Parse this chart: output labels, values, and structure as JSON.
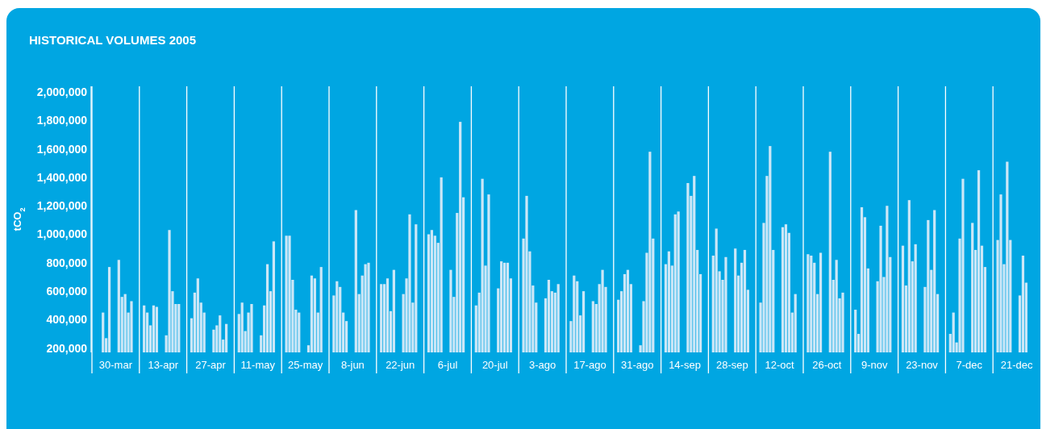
{
  "chart_data": {
    "type": "bar",
    "title": "HISTORICAL VOLUMES 2005",
    "ylabel": "tCO$_{2}$",
    "categories": [
      null,
      null,
      null,
      null,
      null,
      null,
      null,
      "30-mar",
      null,
      null,
      null,
      null,
      null,
      null,
      null,
      null,
      null,
      null,
      null,
      null,
      null,
      null,
      "13-apr",
      null,
      null,
      null,
      null,
      null,
      null,
      null,
      null,
      null,
      null,
      null,
      null,
      null,
      null,
      "27-apr",
      null,
      null,
      null,
      null,
      null,
      null,
      null,
      null,
      null,
      null,
      null,
      null,
      null,
      null,
      "11-may",
      null,
      null,
      null,
      null,
      null,
      null,
      null,
      null,
      null,
      null,
      null,
      null,
      null,
      null,
      "25-may",
      null,
      null,
      null,
      null,
      null,
      null,
      null,
      null,
      null,
      null,
      null,
      null,
      null,
      null,
      "8-jun",
      null,
      null,
      null,
      null,
      null,
      null,
      null,
      null,
      null,
      null,
      null,
      null,
      null,
      null,
      "22-jun",
      null,
      null,
      null,
      null,
      null,
      null,
      null,
      null,
      null,
      null,
      null,
      null,
      null,
      null,
      "6-jul",
      null,
      null,
      null,
      null,
      null,
      null,
      null,
      null,
      null,
      null,
      null,
      null,
      null,
      null,
      "20-jul",
      null,
      null,
      null,
      null,
      null,
      null,
      null,
      null,
      null,
      null,
      null,
      null,
      null,
      null,
      "3-ago",
      null,
      null,
      null,
      null,
      null,
      null,
      null,
      null,
      null,
      null,
      null,
      null,
      null,
      null,
      "17-ago",
      null,
      null,
      null,
      null,
      null,
      null,
      null,
      null,
      null,
      null,
      null,
      null,
      null,
      null,
      "31-ago",
      null,
      null,
      null,
      null,
      null,
      null,
      null,
      null,
      null,
      null,
      null,
      null,
      null,
      null,
      "14-sep",
      null,
      null,
      null,
      null,
      null,
      null,
      null,
      null,
      null,
      null,
      null,
      null,
      null,
      null,
      "28-sep",
      null,
      null,
      null,
      null,
      null,
      null,
      null,
      null,
      null,
      null,
      null,
      null,
      null,
      null,
      "12-oct",
      null,
      null,
      null,
      null,
      null,
      null,
      null,
      null,
      null,
      null,
      null,
      null,
      null,
      null,
      "26-oct",
      null,
      null,
      null,
      null,
      null,
      null,
      null,
      null,
      null,
      null,
      null,
      null,
      null,
      null,
      "9-nov",
      null,
      null,
      null,
      null,
      null,
      null,
      null,
      null,
      null,
      null,
      null,
      null,
      null,
      null,
      "23-nov",
      null,
      null,
      null,
      null,
      null,
      null,
      null,
      null,
      null,
      null,
      null,
      null,
      null,
      null,
      "7-dec",
      null,
      null,
      null,
      null,
      null,
      null,
      null,
      null,
      null,
      null,
      null,
      null,
      null,
      null,
      "21-dec",
      null,
      null,
      null,
      null,
      null,
      null,
      null
    ],
    "values": [
      null,
      null,
      null,
      450000,
      270000,
      770000,
      null,
      null,
      820000,
      560000,
      580000,
      450000,
      530000,
      null,
      null,
      null,
      500000,
      450000,
      360000,
      500000,
      490000,
      null,
      null,
      290000,
      1030000,
      600000,
      510000,
      510000,
      null,
      null,
      null,
      410000,
      590000,
      690000,
      520000,
      450000,
      null,
      null,
      330000,
      360000,
      430000,
      260000,
      370000,
      null,
      null,
      null,
      440000,
      520000,
      320000,
      450000,
      510000,
      null,
      null,
      290000,
      500000,
      790000,
      600000,
      950000,
      null,
      null,
      null,
      990000,
      990000,
      680000,
      470000,
      450000,
      null,
      null,
      220000,
      710000,
      690000,
      450000,
      770000,
      null,
      null,
      null,
      570000,
      670000,
      630000,
      450000,
      390000,
      null,
      null,
      1170000,
      580000,
      710000,
      790000,
      800000,
      null,
      null,
      null,
      650000,
      650000,
      690000,
      460000,
      750000,
      null,
      null,
      580000,
      690000,
      1140000,
      520000,
      1070000,
      null,
      null,
      null,
      1000000,
      1030000,
      990000,
      940000,
      1400000,
      null,
      null,
      750000,
      560000,
      1150000,
      1790000,
      1260000,
      null,
      null,
      null,
      500000,
      590000,
      1390000,
      780000,
      1280000,
      null,
      null,
      620000,
      810000,
      800000,
      800000,
      690000,
      null,
      null,
      null,
      970000,
      1270000,
      880000,
      640000,
      520000,
      null,
      null,
      550000,
      680000,
      600000,
      590000,
      650000,
      null,
      null,
      null,
      390000,
      710000,
      670000,
      430000,
      600000,
      null,
      null,
      530000,
      510000,
      650000,
      750000,
      630000,
      null,
      null,
      null,
      540000,
      600000,
      720000,
      750000,
      650000,
      null,
      null,
      220000,
      530000,
      870000,
      1580000,
      970000,
      null,
      null,
      null,
      790000,
      880000,
      780000,
      1140000,
      1160000,
      null,
      null,
      1360000,
      1270000,
      1410000,
      890000,
      720000,
      null,
      null,
      null,
      850000,
      1040000,
      740000,
      680000,
      840000,
      null,
      null,
      900000,
      710000,
      800000,
      890000,
      610000,
      null,
      null,
      null,
      520000,
      1080000,
      1410000,
      1620000,
      890000,
      null,
      null,
      1050000,
      1070000,
      1010000,
      450000,
      580000,
      null,
      null,
      null,
      860000,
      850000,
      800000,
      580000,
      870000,
      null,
      null,
      1580000,
      680000,
      820000,
      550000,
      590000,
      null,
      null,
      null,
      470000,
      300000,
      1190000,
      1120000,
      760000,
      null,
      null,
      670000,
      1060000,
      700000,
      1200000,
      840000,
      null,
      null,
      null,
      920000,
      640000,
      1240000,
      810000,
      930000,
      null,
      null,
      630000,
      1100000,
      750000,
      1170000,
      580000,
      null,
      null,
      null,
      300000,
      450000,
      240000,
      970000,
      1390000,
      null,
      null,
      1080000,
      890000,
      1450000,
      920000,
      770000,
      null,
      null,
      null,
      960000,
      1280000,
      790000,
      1510000,
      960000,
      null,
      null,
      570000,
      850000,
      660000,
      null,
      null,
      null,
      null
    ],
    "color": "#cce7f7",
    "ylim": [
      170000,
      2040000
    ],
    "yticks": [
      {
        "value": 200000,
        "label": "200,000"
      },
      {
        "value": 400000,
        "label": "400,000"
      },
      {
        "value": 600000,
        "label": "600,000"
      },
      {
        "value": 800000,
        "label": "800,000"
      },
      {
        "value": 1000000,
        "label": "1,000,000"
      },
      {
        "value": 1200000,
        "label": "1,200,000"
      },
      {
        "value": 1400000,
        "label": "1,400,000"
      },
      {
        "value": 1600000,
        "label": "1,600,000"
      },
      {
        "value": 1800000,
        "label": "1,800,000"
      },
      {
        "value": 2000000,
        "label": "2,000,000"
      }
    ],
    "grid": "x"
  }
}
